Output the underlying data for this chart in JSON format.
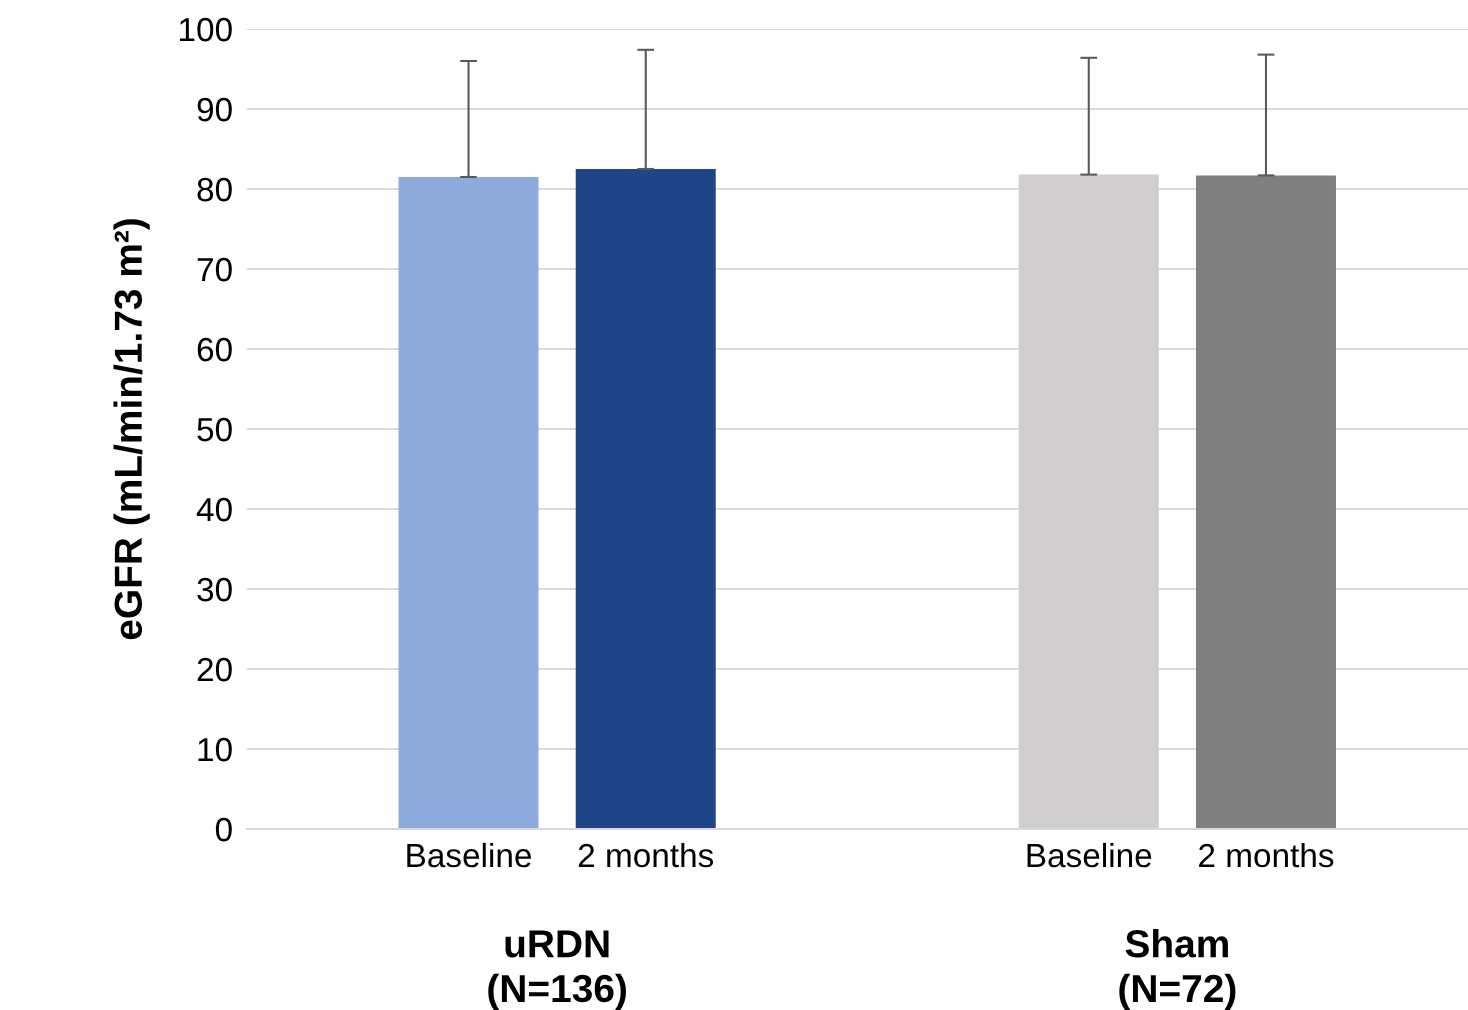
{
  "chart_data": {
    "type": "bar",
    "ylabel": "eGFR (mL/min/1.73 m²)",
    "categories": [
      "Baseline",
      "2 months",
      "Baseline",
      "2 months"
    ],
    "values": [
      81.5,
      82.5,
      81.8,
      81.7
    ],
    "colors": [
      "#8faadc",
      "#1f4587",
      "#d0cece",
      "#7f7f7f"
    ],
    "errors": [
      [
        81.5,
        96.0
      ],
      [
        82.5,
        97.4
      ],
      [
        81.8,
        96.4
      ],
      [
        81.7,
        96.8
      ]
    ],
    "annotations": [
      "uRDN\n(N=136)",
      "Sham\n(N=72)"
    ],
    "ylim": [
      0,
      100
    ],
    "yticks": [
      0,
      10,
      20,
      30,
      40,
      50,
      60,
      70,
      80,
      90,
      100
    ],
    "grid": "y",
    "legend": false
  }
}
